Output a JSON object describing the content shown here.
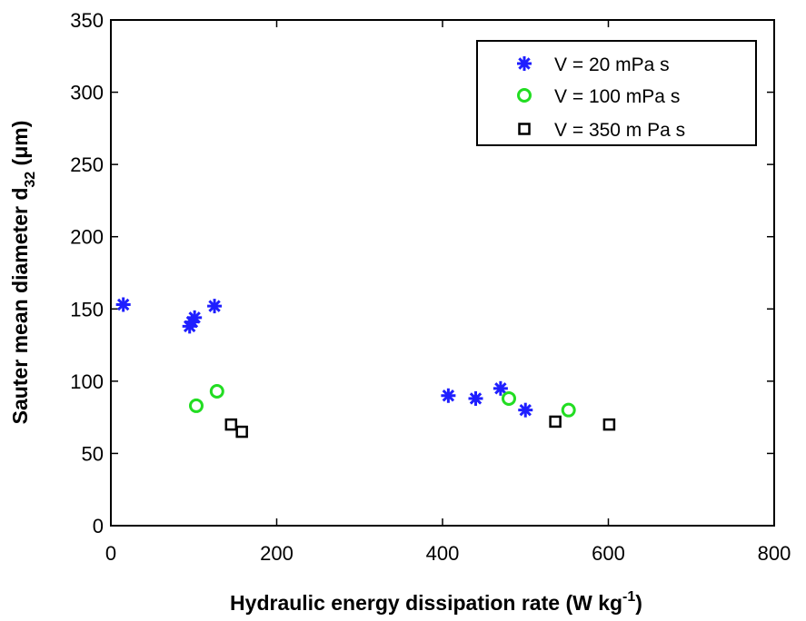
{
  "chart_data": {
    "type": "scatter",
    "xlabel": "Hydraulic energy dissipation rate (W kg",
    "xlabel_sup": "-1",
    "xlabel_end": ")",
    "ylabel": "Sauter mean diameter d",
    "ylabel_sub": "32",
    "ylabel_end": " (μm)",
    "xlim": [
      0,
      800
    ],
    "ylim": [
      0,
      350
    ],
    "xticks": [
      0,
      200,
      400,
      600,
      800
    ],
    "yticks": [
      0,
      50,
      100,
      150,
      200,
      250,
      300,
      350
    ],
    "grid": false,
    "legend_position": "top-right",
    "series": [
      {
        "name": "V = 20 mPa s",
        "marker": "asterisk",
        "color": "#1f1fff",
        "points": [
          {
            "x": 15,
            "y": 153
          },
          {
            "x": 95,
            "y": 138
          },
          {
            "x": 98,
            "y": 141
          },
          {
            "x": 101,
            "y": 144
          },
          {
            "x": 125,
            "y": 152
          },
          {
            "x": 407,
            "y": 90
          },
          {
            "x": 440,
            "y": 88
          },
          {
            "x": 470,
            "y": 95
          },
          {
            "x": 500,
            "y": 80
          }
        ]
      },
      {
        "name": "V = 100 mPa s",
        "marker": "circle",
        "color": "#22dd22",
        "points": [
          {
            "x": 103,
            "y": 83
          },
          {
            "x": 128,
            "y": 93
          },
          {
            "x": 480,
            "y": 88
          },
          {
            "x": 552,
            "y": 80
          }
        ]
      },
      {
        "name": "V = 350 m Pa s",
        "marker": "square",
        "color": "#000000",
        "points": [
          {
            "x": 145,
            "y": 70
          },
          {
            "x": 158,
            "y": 65
          },
          {
            "x": 536,
            "y": 72
          },
          {
            "x": 601,
            "y": 70
          }
        ]
      }
    ]
  }
}
